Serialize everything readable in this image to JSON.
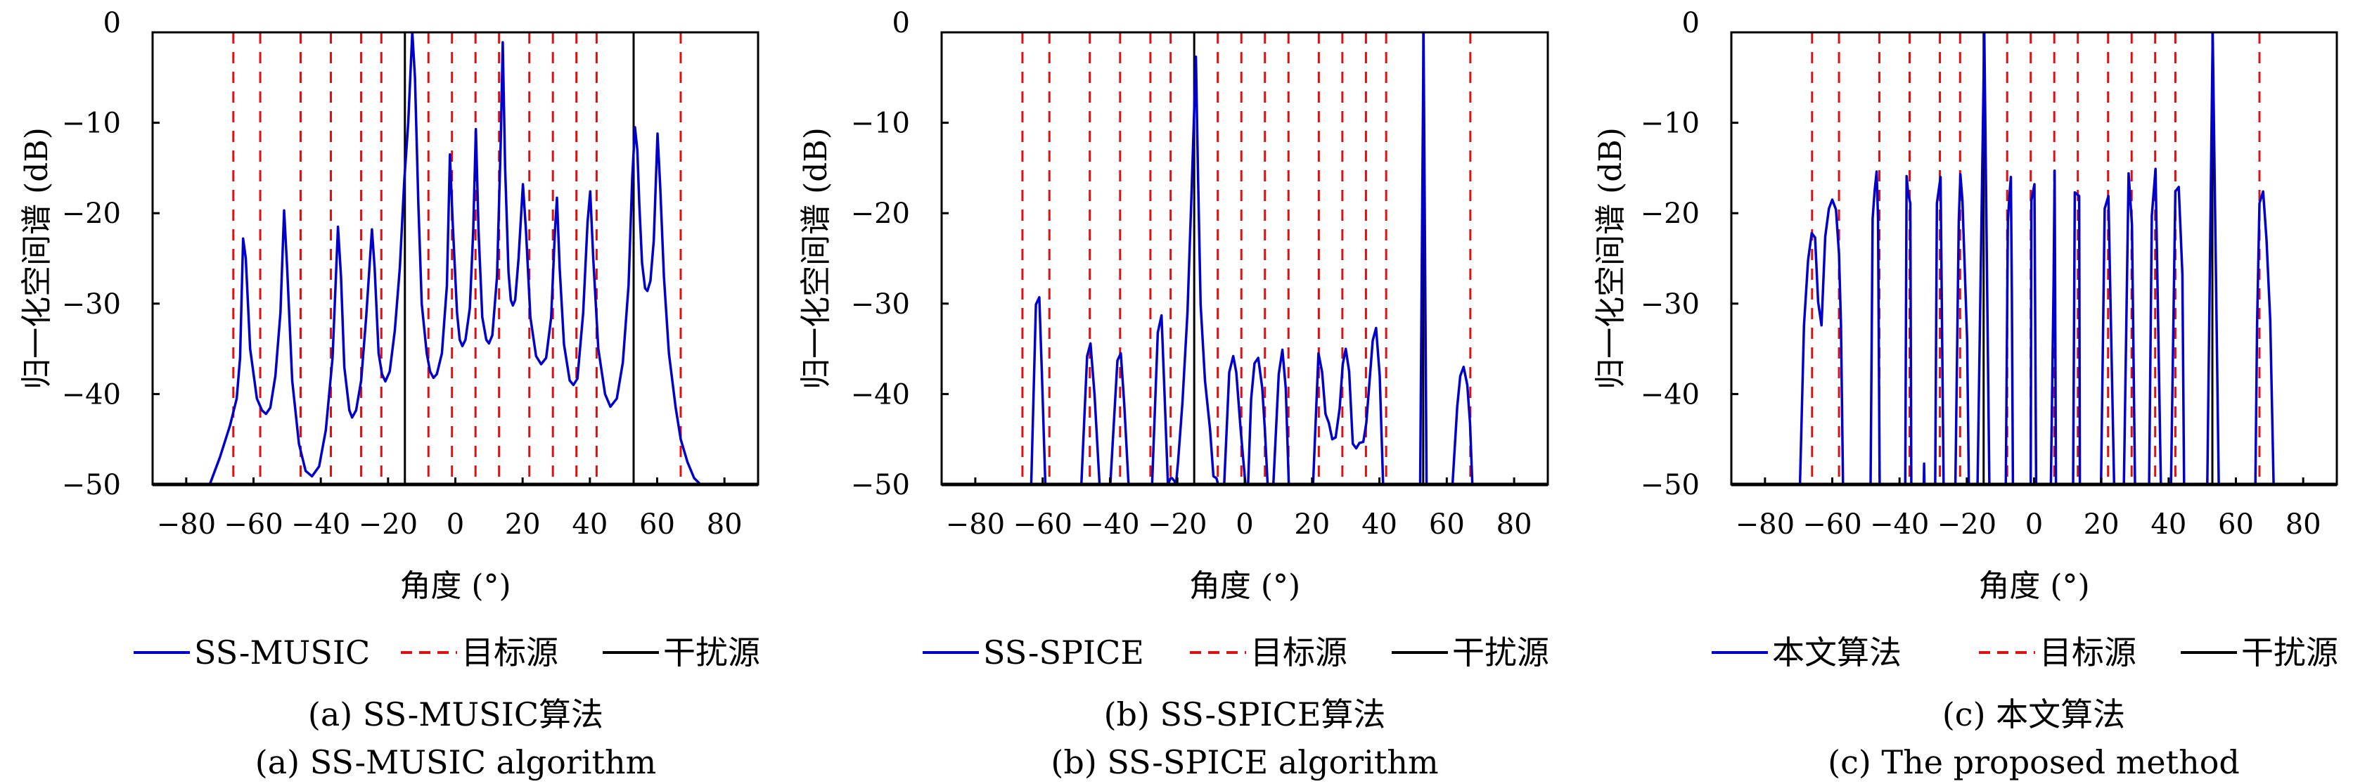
{
  "figure": {
    "legend": {
      "target_label": "目标源",
      "interference_label": "干扰源"
    },
    "colors": {
      "spectrum": "#0000cc",
      "target": "#dd1111",
      "interference": "#000000",
      "axis": "#000000"
    }
  },
  "chart_data": [
    {
      "type": "line",
      "title": "",
      "caption_cn": "(a) SS-MUSIC算法",
      "caption_en": "(a) SS-MUSIC algorithm",
      "xlabel": "角度 (°)",
      "ylabel": "归一化空间谱 (dB)",
      "xlim": [
        -90,
        90
      ],
      "ylim": [
        -50,
        0
      ],
      "xticks": [
        -80,
        -60,
        -40,
        -20,
        0,
        20,
        40,
        60,
        80
      ],
      "xtick_labels": [
        "−80",
        "−60",
        "−40",
        "−20",
        "0",
        "20",
        "40",
        "60",
        "80"
      ],
      "yticks": [
        0,
        -10,
        -20,
        -30,
        -40,
        -50
      ],
      "ytick_labels": [
        "0",
        "−10",
        "−20",
        "−30",
        "−40",
        "−50"
      ],
      "grid": false,
      "legend_position": "bottom",
      "legend": [
        "SS-MUSIC",
        "目标源",
        "干扰源"
      ],
      "target_angles": [
        -66,
        -58,
        -46,
        -37,
        -28,
        -22,
        -8,
        -1,
        6,
        13,
        22,
        29,
        36,
        42,
        67
      ],
      "interference_angles": [
        -15,
        53
      ],
      "series": [
        {
          "name": "SS-MUSIC",
          "x": [
            -73,
            -70,
            -67,
            -65,
            -64,
            -63.1,
            -62.3,
            -61,
            -59,
            -57.5,
            -56.3,
            -55,
            -53.5,
            -52,
            -50.9,
            -50,
            -48.5,
            -46.5,
            -44.5,
            -42.6,
            -40.5,
            -38.5,
            -36.5,
            -34.9,
            -34,
            -33,
            -31.5,
            -30.7,
            -29.5,
            -28,
            -26.5,
            -24.8,
            -24,
            -22.8,
            -21.8,
            -20.8,
            -19.5,
            -18,
            -16.5,
            -15.2,
            -14,
            -12.8,
            -12,
            -11,
            -10,
            -8.5,
            -7.5,
            -6.5,
            -5.5,
            -4,
            -2.5,
            -1.6,
            -0.8,
            0.5,
            1.3,
            2.1,
            3,
            4.3,
            5.3,
            6.1,
            6.9,
            8,
            9.2,
            10,
            11,
            12.4,
            13.5,
            14.1,
            14.8,
            15.8,
            16.5,
            17.1,
            17.8,
            18.8,
            20.1,
            21,
            22.3,
            24,
            25.5,
            27,
            28.5,
            29.6,
            30.2,
            31,
            32.3,
            34,
            35.1,
            36.3,
            38,
            39.3,
            40.1,
            41,
            42.5,
            44.5,
            46.1,
            48,
            49.8,
            51.5,
            52.6,
            53.4,
            54.1,
            54.7,
            55.5,
            56.4,
            57.1,
            58,
            59,
            60.1,
            60.9,
            62,
            63.5,
            65.5,
            67,
            69,
            71,
            72.9
          ],
          "y": [
            -50,
            -47,
            -43.5,
            -40.5,
            -36,
            -22.8,
            -25,
            -35,
            -40.5,
            -41.8,
            -42.2,
            -41.5,
            -38,
            -31,
            -19.7,
            -26,
            -38.5,
            -45.5,
            -48.5,
            -49.1,
            -48,
            -44,
            -36,
            -21.5,
            -27,
            -37,
            -41.8,
            -42.6,
            -41.8,
            -38.5,
            -31.5,
            -21.8,
            -26,
            -35.5,
            -37.8,
            -38.6,
            -37.5,
            -33,
            -26,
            -16.5,
            -10,
            0,
            -5,
            -19,
            -30,
            -35.5,
            -37.5,
            -38.2,
            -37.8,
            -35.5,
            -28,
            -13.5,
            -21,
            -31,
            -34,
            -34.7,
            -34,
            -30.5,
            -22,
            -10.7,
            -22,
            -31.5,
            -34,
            -34.4,
            -33.5,
            -27,
            -12,
            -1.1,
            -15,
            -26.5,
            -29.6,
            -30.2,
            -29.6,
            -25,
            -16.8,
            -22,
            -31.5,
            -35.8,
            -36.7,
            -36,
            -31.5,
            -22,
            -18.3,
            -26,
            -34.5,
            -38.5,
            -39,
            -38.3,
            -31,
            -21,
            -17.6,
            -25,
            -35,
            -40,
            -41.4,
            -40.5,
            -36.5,
            -28,
            -16,
            -10.5,
            -13,
            -19,
            -25.5,
            -28.3,
            -28.6,
            -27.5,
            -23,
            -11.2,
            -17,
            -27,
            -35.5,
            -41.5,
            -45,
            -47.5,
            -49.3,
            -50
          ]
        }
      ]
    },
    {
      "type": "line",
      "title": "",
      "caption_cn": "(b) SS-SPICE算法",
      "caption_en": "(b) SS-SPICE algorithm",
      "xlabel": "角度 (°)",
      "ylabel": "归一化空间谱 (dB)",
      "xlim": [
        -90,
        90
      ],
      "ylim": [
        -50,
        0
      ],
      "xticks": [
        -80,
        -60,
        -40,
        -20,
        0,
        20,
        40,
        60,
        80
      ],
      "xtick_labels": [
        "−80",
        "−60",
        "−40",
        "−20",
        "0",
        "20",
        "40",
        "60",
        "80"
      ],
      "yticks": [
        0,
        -10,
        -20,
        -30,
        -40,
        -50
      ],
      "ytick_labels": [
        "0",
        "−10",
        "−20",
        "−30",
        "−40",
        "−50"
      ],
      "grid": false,
      "legend_position": "bottom",
      "legend": [
        "SS-SPICE",
        "目标源",
        "干扰源"
      ],
      "target_angles": [
        -66,
        -58,
        -46,
        -37,
        -28,
        -22,
        -8,
        -1,
        6,
        13,
        22,
        29,
        36,
        42,
        67
      ],
      "interference_angles": [
        -15,
        53
      ],
      "series": [
        {
          "name": "SS-SPICE",
          "x": [
            -63.4,
            -62.0,
            -61.0,
            -60.2,
            -59.2,
            null,
            -48.5,
            -46.8,
            -45.8,
            -44.6,
            -43.1,
            null,
            -39.9,
            -37.8,
            -36.8,
            -35.8,
            -34.5,
            null,
            -27.5,
            -25.8,
            -24.7,
            -23.8,
            -22.8,
            -22.0,
            -21.6,
            -20.9,
            -20.4,
            -19.8,
            -18.5,
            -17,
            -15.8,
            -14.5,
            -13.9,
            -13.1,
            -11.8,
            -10.3,
            -9.3,
            -8.4,
            -7.9,
            null,
            -6.1,
            -4.6,
            -3.4,
            -2.5,
            -1.2,
            0.2,
            null,
            1.0,
            1.9,
            2.9,
            4.0,
            5.2,
            6.0,
            6.8,
            null,
            8.5,
            10.1,
            11.2,
            12.2,
            13.1,
            null,
            20.3,
            21.9,
            23.0,
            24.0,
            25.0,
            26.0,
            27.0,
            28.2,
            29.1,
            30.0,
            31.0,
            32.1,
            33.1,
            34.1,
            35.2,
            36.1,
            38.0,
            39.0,
            40.1,
            41.1,
            null,
            52.1,
            53.1,
            54.0,
            null,
            61.7,
            63.1,
            64.0,
            65.0,
            66.1,
            66.9,
            67.6
          ],
          "y": [
            -50,
            -30.1,
            -29.3,
            -38,
            -50,
            null,
            -50,
            -35.8,
            -34.4,
            -40,
            -50,
            null,
            -50,
            -36.3,
            -35.5,
            -41,
            -50,
            null,
            -50,
            -33.2,
            -31.3,
            -40,
            -50,
            -49.3,
            -49.3,
            -49.6,
            -50,
            -47.5,
            -41,
            -31,
            -18,
            -2.7,
            -15,
            -30.1,
            -38.5,
            -43.9,
            -49.1,
            -49.3,
            -50,
            null,
            -50,
            -37.6,
            -35.8,
            -37.6,
            -44,
            -50,
            null,
            -50,
            -40.6,
            -36.6,
            -36,
            -39.3,
            -44,
            -50,
            null,
            -50,
            -37.8,
            -35.1,
            -39.4,
            -50,
            null,
            -50,
            -35.5,
            -37.6,
            -42.2,
            -43.2,
            -45,
            -44.8,
            -41.6,
            -36.7,
            -35,
            -37.5,
            -45.5,
            -46,
            -45.4,
            -45.3,
            -43.2,
            -34.1,
            -32.7,
            -38,
            -50,
            null,
            -50,
            0,
            -50,
            null,
            -50,
            -41.4,
            -38,
            -37,
            -39,
            -43.2,
            -50
          ]
        }
      ]
    },
    {
      "type": "line",
      "title": "",
      "caption_cn": "(c) 本文算法",
      "caption_en": "(c) The proposed method",
      "xlabel": "角度 (°)",
      "ylabel": "归一化空间谱 (dB)",
      "xlim": [
        -90,
        90
      ],
      "ylim": [
        -50,
        0
      ],
      "xticks": [
        -80,
        -60,
        -40,
        -20,
        0,
        20,
        40,
        60,
        80
      ],
      "xtick_labels": [
        "−80",
        "−60",
        "−40",
        "−20",
        "0",
        "20",
        "40",
        "60",
        "80"
      ],
      "yticks": [
        0,
        -10,
        -20,
        -30,
        -40,
        -50
      ],
      "ytick_labels": [
        "0",
        "−10",
        "−20",
        "−30",
        "−40",
        "−50"
      ],
      "grid": false,
      "legend_position": "bottom",
      "legend": [
        "本文算法",
        "目标源",
        "干扰源"
      ],
      "target_angles": [
        -66,
        -58,
        -46,
        -37,
        -28,
        -22,
        -8,
        -1,
        6,
        13,
        22,
        29,
        36,
        42,
        67
      ],
      "interference_angles": [
        -15,
        53
      ],
      "series": [
        {
          "name": "本文算法",
          "x": [
            -69.6,
            -68.4,
            -67.2,
            -66.1,
            -65.1,
            -64.2,
            -63.2,
            -62.1,
            -61.0,
            -60.0,
            -58.9,
            -58.0,
            -57.4,
            -56.8,
            null,
            -48.6,
            -48.0,
            -47.4,
            -46.8,
            -46.4,
            -45.9,
            null,
            -38.3,
            -37.9,
            -37.4,
            -36.8,
            -36.5,
            null,
            -32.8,
            -32.7,
            -32.6,
            null,
            -29.4,
            -28.9,
            -27.8,
            -26.9,
            null,
            -23.4,
            -22.4,
            -21.9,
            -21.3,
            -19.9,
            -19.4,
            null,
            -16.8,
            -14.8,
            -13.3,
            null,
            -8.4,
            -7.8,
            -7.3,
            -6.9,
            -6.6,
            -6.3,
            null,
            -1.0,
            -0.8,
            0.1,
            0.6,
            null,
            5.0,
            5.8,
            6.1,
            6.5,
            null,
            11.6,
            12.1,
            13.4,
            13.6,
            null,
            19.9,
            21.0,
            22.1,
            23.8,
            null,
            26.7,
            28.1,
            29.1,
            30.0,
            null,
            34.2,
            35.0,
            36.1,
            37.7,
            null,
            40.7,
            42.0,
            43.0,
            44.1,
            44.6,
            null,
            51.5,
            53.1,
            54.9,
            null,
            65.8,
            66.3,
            67.0,
            68.1,
            69.1,
            70.2,
            71.2
          ],
          "y": [
            -50,
            -32.4,
            -25.2,
            -22.2,
            -22.7,
            -29.8,
            -32.4,
            -22.6,
            -19.5,
            -18.5,
            -19.6,
            -24.5,
            -32.4,
            -50,
            null,
            -50,
            -20.6,
            -17.5,
            -15.4,
            -20.6,
            -50,
            null,
            -50,
            -15.9,
            -17.9,
            -18.9,
            -50,
            null,
            -50,
            -47.7,
            -50,
            null,
            -50,
            -18.9,
            -16,
            -50,
            null,
            -50,
            -20.9,
            -15.7,
            -18.6,
            -34,
            -50,
            null,
            -50,
            0,
            -50,
            null,
            -50,
            -20.9,
            -17.9,
            -16,
            -29,
            -50,
            null,
            -50,
            -18.6,
            -16.8,
            -50,
            null,
            -50,
            -28,
            -15.3,
            -50,
            null,
            -50,
            -17.7,
            -18.1,
            -50,
            null,
            -50,
            -19.5,
            -18.1,
            -50,
            null,
            -50,
            -15.6,
            -21.3,
            -50,
            null,
            -50,
            -20.3,
            -15.1,
            -50,
            null,
            -50,
            -17.6,
            -17.1,
            -26.8,
            -50,
            null,
            -50,
            0,
            -50,
            null,
            -50,
            -32.4,
            -18.9,
            -17.6,
            -22.9,
            -31.8,
            -50
          ]
        }
      ]
    }
  ]
}
